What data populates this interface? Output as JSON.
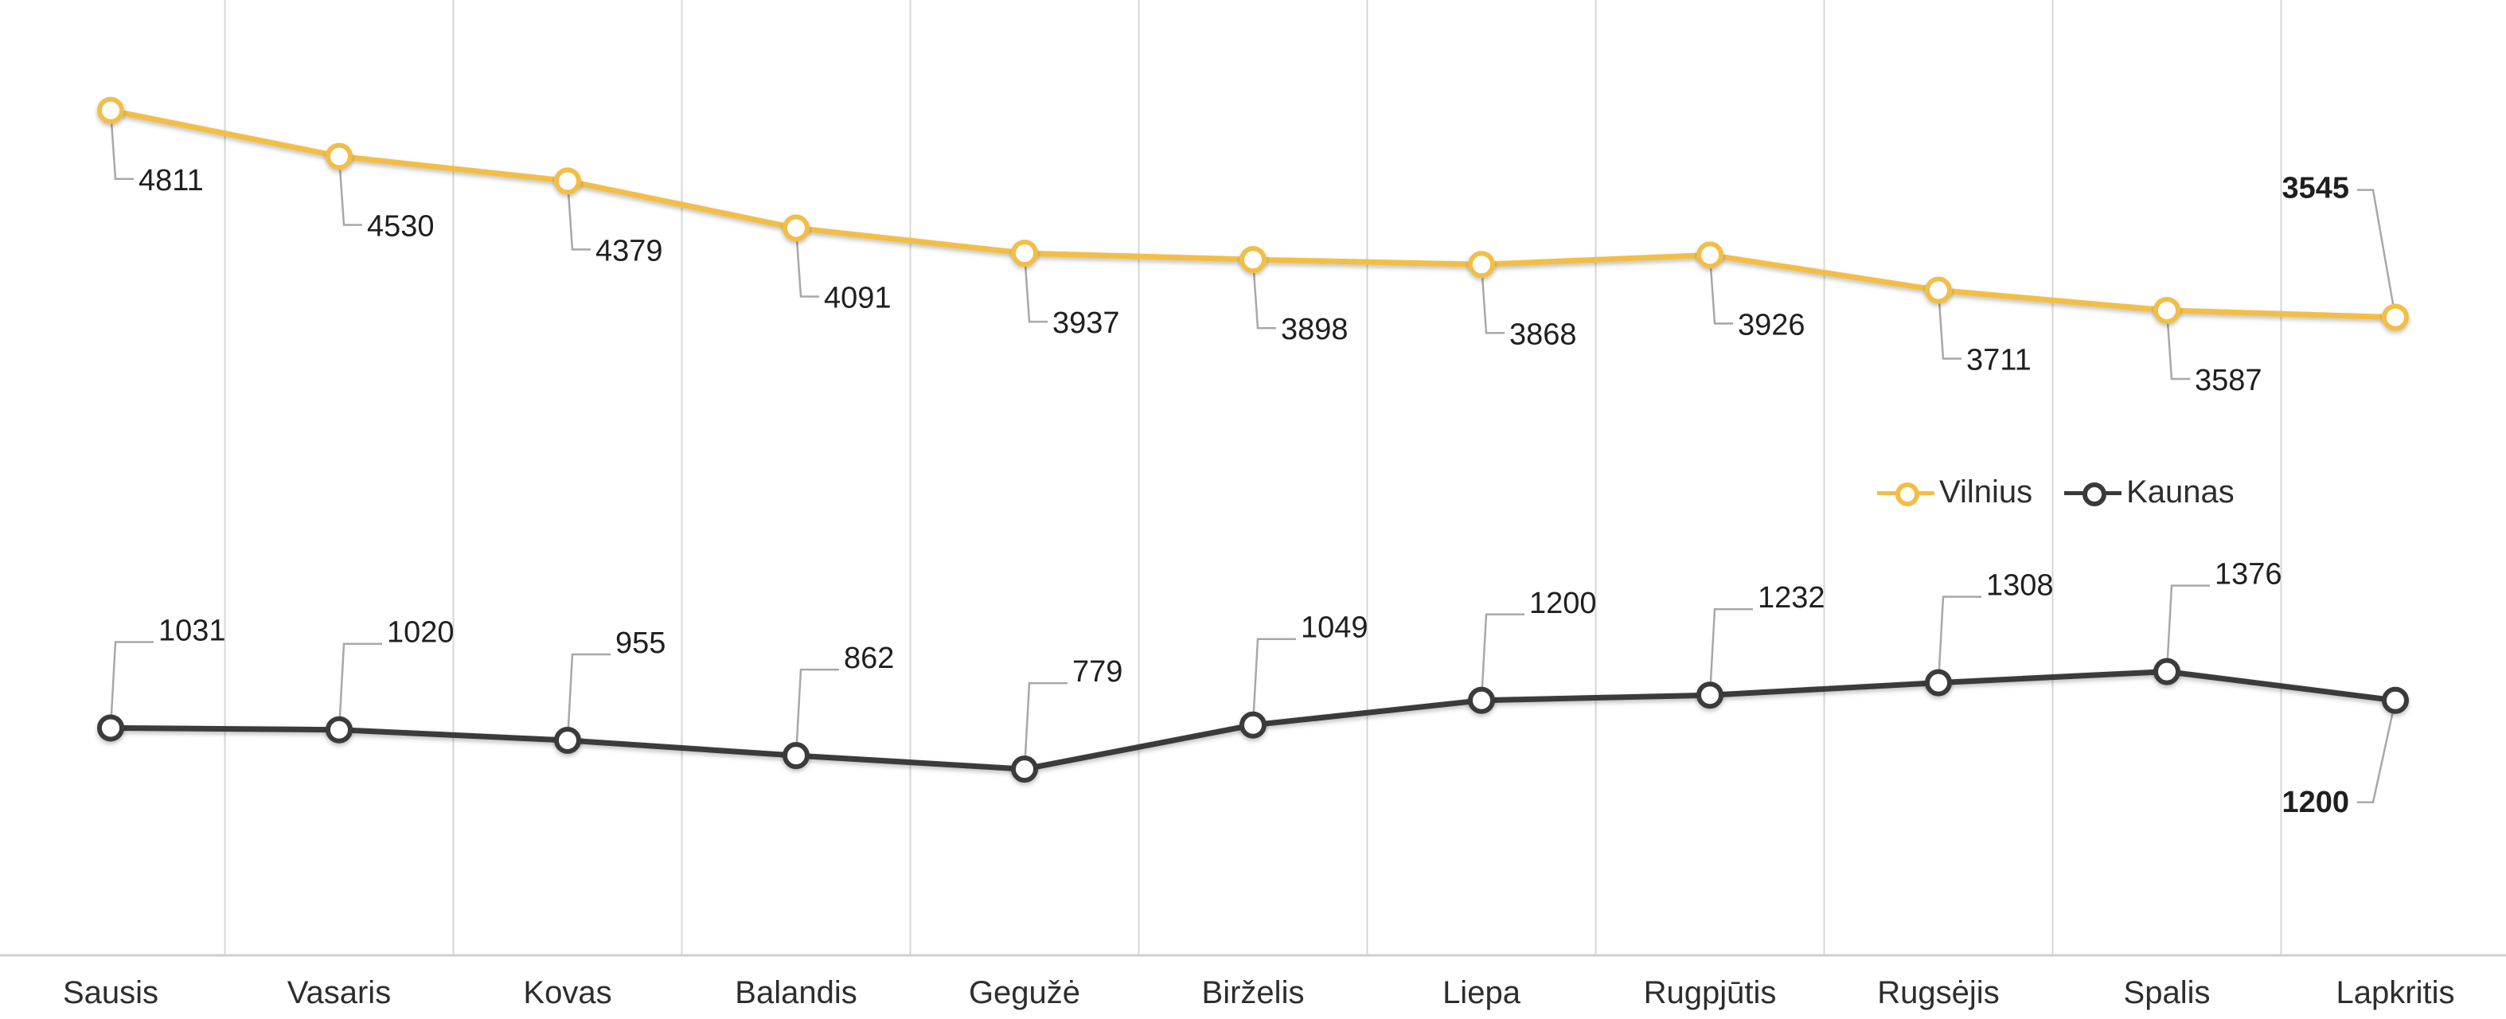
{
  "chart_data": {
    "type": "line",
    "categories": [
      "Sausis",
      "Vasaris",
      "Kovas",
      "Balandis",
      "Gegužė",
      "Birželis",
      "Liepa",
      "Rugpjūtis",
      "Rugsėjis",
      "Spalis",
      "Lapkritis"
    ],
    "series": [
      {
        "name": "Vilnius",
        "color": "#F2BE46",
        "values": [
          4811,
          4530,
          4379,
          4091,
          3937,
          3898,
          3868,
          3926,
          3711,
          3587,
          3545
        ]
      },
      {
        "name": "Kaunas",
        "color": "#3A3A3A",
        "values": [
          1031,
          1020,
          955,
          862,
          779,
          1049,
          1200,
          1232,
          1308,
          1376,
          1200
        ]
      }
    ],
    "legend": "right",
    "grid": "vertical",
    "title": "",
    "xlabel": "",
    "ylabel": ""
  }
}
